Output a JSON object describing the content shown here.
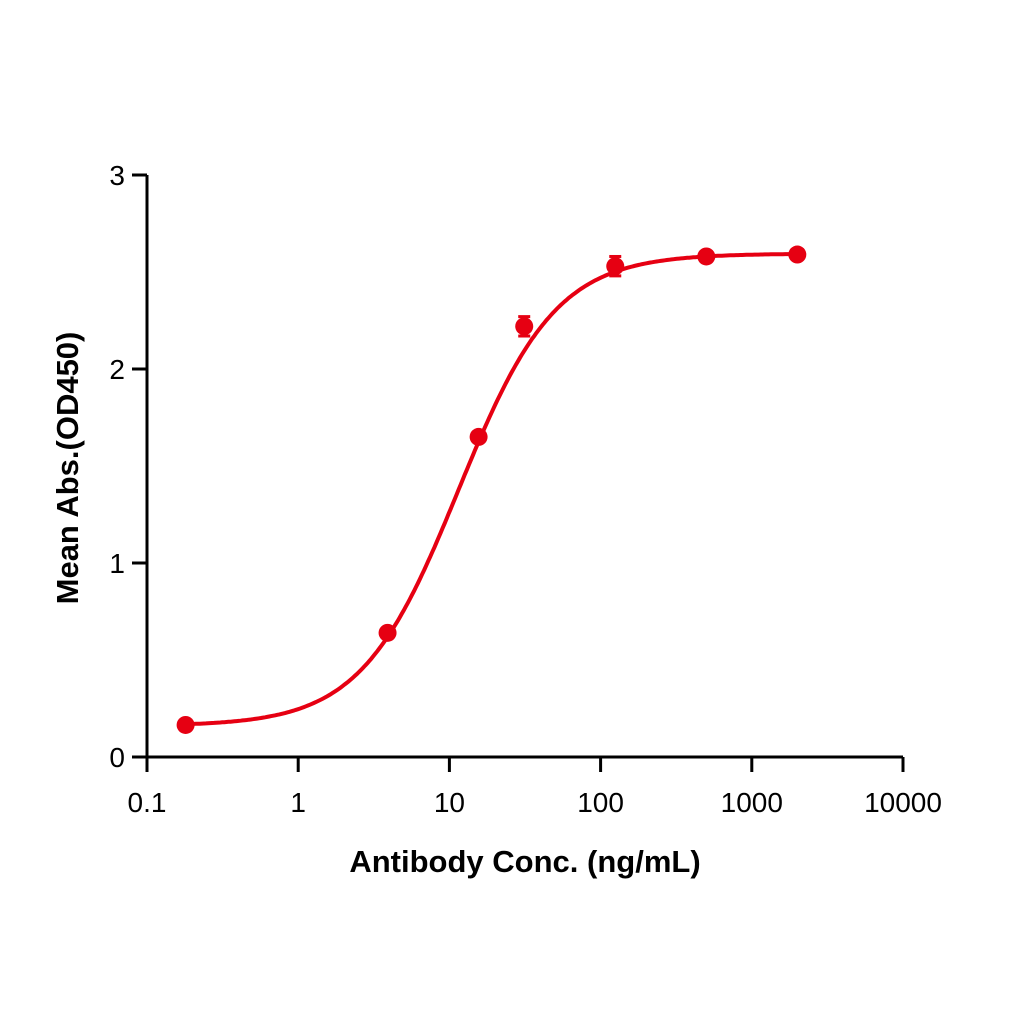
{
  "chart_data": {
    "type": "line",
    "title": "",
    "xlabel": "Antibody Conc. (ng/mL)",
    "ylabel": "Mean Abs.(OD450)",
    "xscale": "log",
    "xlim": [
      0.1,
      10000
    ],
    "ylim": [
      0,
      3
    ],
    "x_ticks": [
      "0.1",
      "1",
      "10",
      "100",
      "1000",
      "10000"
    ],
    "y_ticks": [
      "0",
      "1",
      "2",
      "3"
    ],
    "grid": false,
    "legend": null,
    "color": "#e60012",
    "series": [
      {
        "name": "Mean Abs.",
        "x": [
          0.18,
          3.9,
          15.6,
          31.25,
          125,
          500,
          2000
        ],
        "values": [
          0.165,
          0.64,
          1.65,
          2.22,
          2.53,
          2.58,
          2.59
        ],
        "error": [
          0.0,
          0.01,
          0.01,
          0.05,
          0.05,
          0.01,
          0.01
        ]
      }
    ],
    "fit": "4-parameter logistic sigmoid curve"
  }
}
